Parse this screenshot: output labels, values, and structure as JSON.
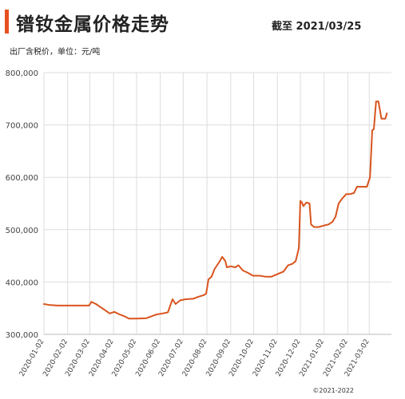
{
  "header": {
    "title": "镨钕金属价格走势",
    "date_label": "截至 2021/03/25",
    "unit_label": "出厂含税价，单位：元/吨"
  },
  "footer": {
    "copyright": "©2021-2022"
  },
  "colors": {
    "accent": "#e8501f",
    "line": "#d9541e",
    "grid": "#dddddd"
  },
  "chart_data": {
    "type": "line",
    "title": "镨钕金属价格走势",
    "xlabel": "",
    "ylabel": "",
    "ylim": [
      300000,
      800000
    ],
    "yticks": [
      300000,
      400000,
      500000,
      600000,
      700000,
      800000
    ],
    "ytick_labels": [
      "300,000",
      "400,000",
      "500,000",
      "600,000",
      "700,000",
      "800,000"
    ],
    "xlim": [
      "2020-01-02",
      "2021-03-31"
    ],
    "xticks": [
      "2020-01-02",
      "2020-02-02",
      "2020-03-02",
      "2020-04-02",
      "2020-05-02",
      "2020-06-02",
      "2020-07-02",
      "2020-08-02",
      "2020-09-02",
      "2020-10-02",
      "2020-11-02",
      "2020-12-02",
      "2021-01-02",
      "2021-02-02",
      "2021-03-02"
    ],
    "grid": true,
    "legend": "none",
    "series": [
      {
        "name": "",
        "points": [
          [
            "2020-01-02",
            358000
          ],
          [
            "2020-01-10",
            356000
          ],
          [
            "2020-01-20",
            355000
          ],
          [
            "2020-02-02",
            355000
          ],
          [
            "2020-02-20",
            355000
          ],
          [
            "2020-03-01",
            355000
          ],
          [
            "2020-03-04",
            362000
          ],
          [
            "2020-03-10",
            358000
          ],
          [
            "2020-03-18",
            350000
          ],
          [
            "2020-03-28",
            340000
          ],
          [
            "2020-04-03",
            343000
          ],
          [
            "2020-04-10",
            338000
          ],
          [
            "2020-04-17",
            334000
          ],
          [
            "2020-04-22",
            330000
          ],
          [
            "2020-05-02",
            330000
          ],
          [
            "2020-05-15",
            331000
          ],
          [
            "2020-05-28",
            338000
          ],
          [
            "2020-06-05",
            340000
          ],
          [
            "2020-06-12",
            342000
          ],
          [
            "2020-06-15",
            355000
          ],
          [
            "2020-06-18",
            367000
          ],
          [
            "2020-06-22",
            358000
          ],
          [
            "2020-06-28",
            365000
          ],
          [
            "2020-07-05",
            367000
          ],
          [
            "2020-07-15",
            368000
          ],
          [
            "2020-07-22",
            372000
          ],
          [
            "2020-07-29",
            375000
          ],
          [
            "2020-08-01",
            378000
          ],
          [
            "2020-08-04",
            405000
          ],
          [
            "2020-08-08",
            410000
          ],
          [
            "2020-08-12",
            425000
          ],
          [
            "2020-08-18",
            438000
          ],
          [
            "2020-08-22",
            448000
          ],
          [
            "2020-08-26",
            440000
          ],
          [
            "2020-08-28",
            428000
          ],
          [
            "2020-09-02",
            430000
          ],
          [
            "2020-09-08",
            428000
          ],
          [
            "2020-09-12",
            432000
          ],
          [
            "2020-09-18",
            422000
          ],
          [
            "2020-09-24",
            418000
          ],
          [
            "2020-10-01",
            412000
          ],
          [
            "2020-10-10",
            412000
          ],
          [
            "2020-10-18",
            410000
          ],
          [
            "2020-10-25",
            410000
          ],
          [
            "2020-11-02",
            415000
          ],
          [
            "2020-11-10",
            420000
          ],
          [
            "2020-11-16",
            432000
          ],
          [
            "2020-11-22",
            435000
          ],
          [
            "2020-11-26",
            440000
          ],
          [
            "2020-11-30",
            465000
          ],
          [
            "2020-12-02",
            555000
          ],
          [
            "2020-12-04",
            552000
          ],
          [
            "2020-12-06",
            545000
          ],
          [
            "2020-12-10",
            552000
          ],
          [
            "2020-12-14",
            550000
          ],
          [
            "2020-12-16",
            510000
          ],
          [
            "2020-12-20",
            505000
          ],
          [
            "2020-12-26",
            505000
          ],
          [
            "2021-01-02",
            508000
          ],
          [
            "2021-01-08",
            510000
          ],
          [
            "2021-01-13",
            515000
          ],
          [
            "2021-01-17",
            525000
          ],
          [
            "2021-01-21",
            550000
          ],
          [
            "2021-01-26",
            560000
          ],
          [
            "2021-01-31",
            568000
          ],
          [
            "2021-02-05",
            568000
          ],
          [
            "2021-02-10",
            570000
          ],
          [
            "2021-02-14",
            582000
          ],
          [
            "2021-02-20",
            582000
          ],
          [
            "2021-02-27",
            582000
          ],
          [
            "2021-03-03",
            600000
          ],
          [
            "2021-03-06",
            690000
          ],
          [
            "2021-03-08",
            692000
          ],
          [
            "2021-03-11",
            745000
          ],
          [
            "2021-03-14",
            745000
          ],
          [
            "2021-03-18",
            712000
          ],
          [
            "2021-03-21",
            712000
          ],
          [
            "2021-03-23",
            712000
          ],
          [
            "2021-03-25",
            722000
          ]
        ]
      }
    ]
  }
}
